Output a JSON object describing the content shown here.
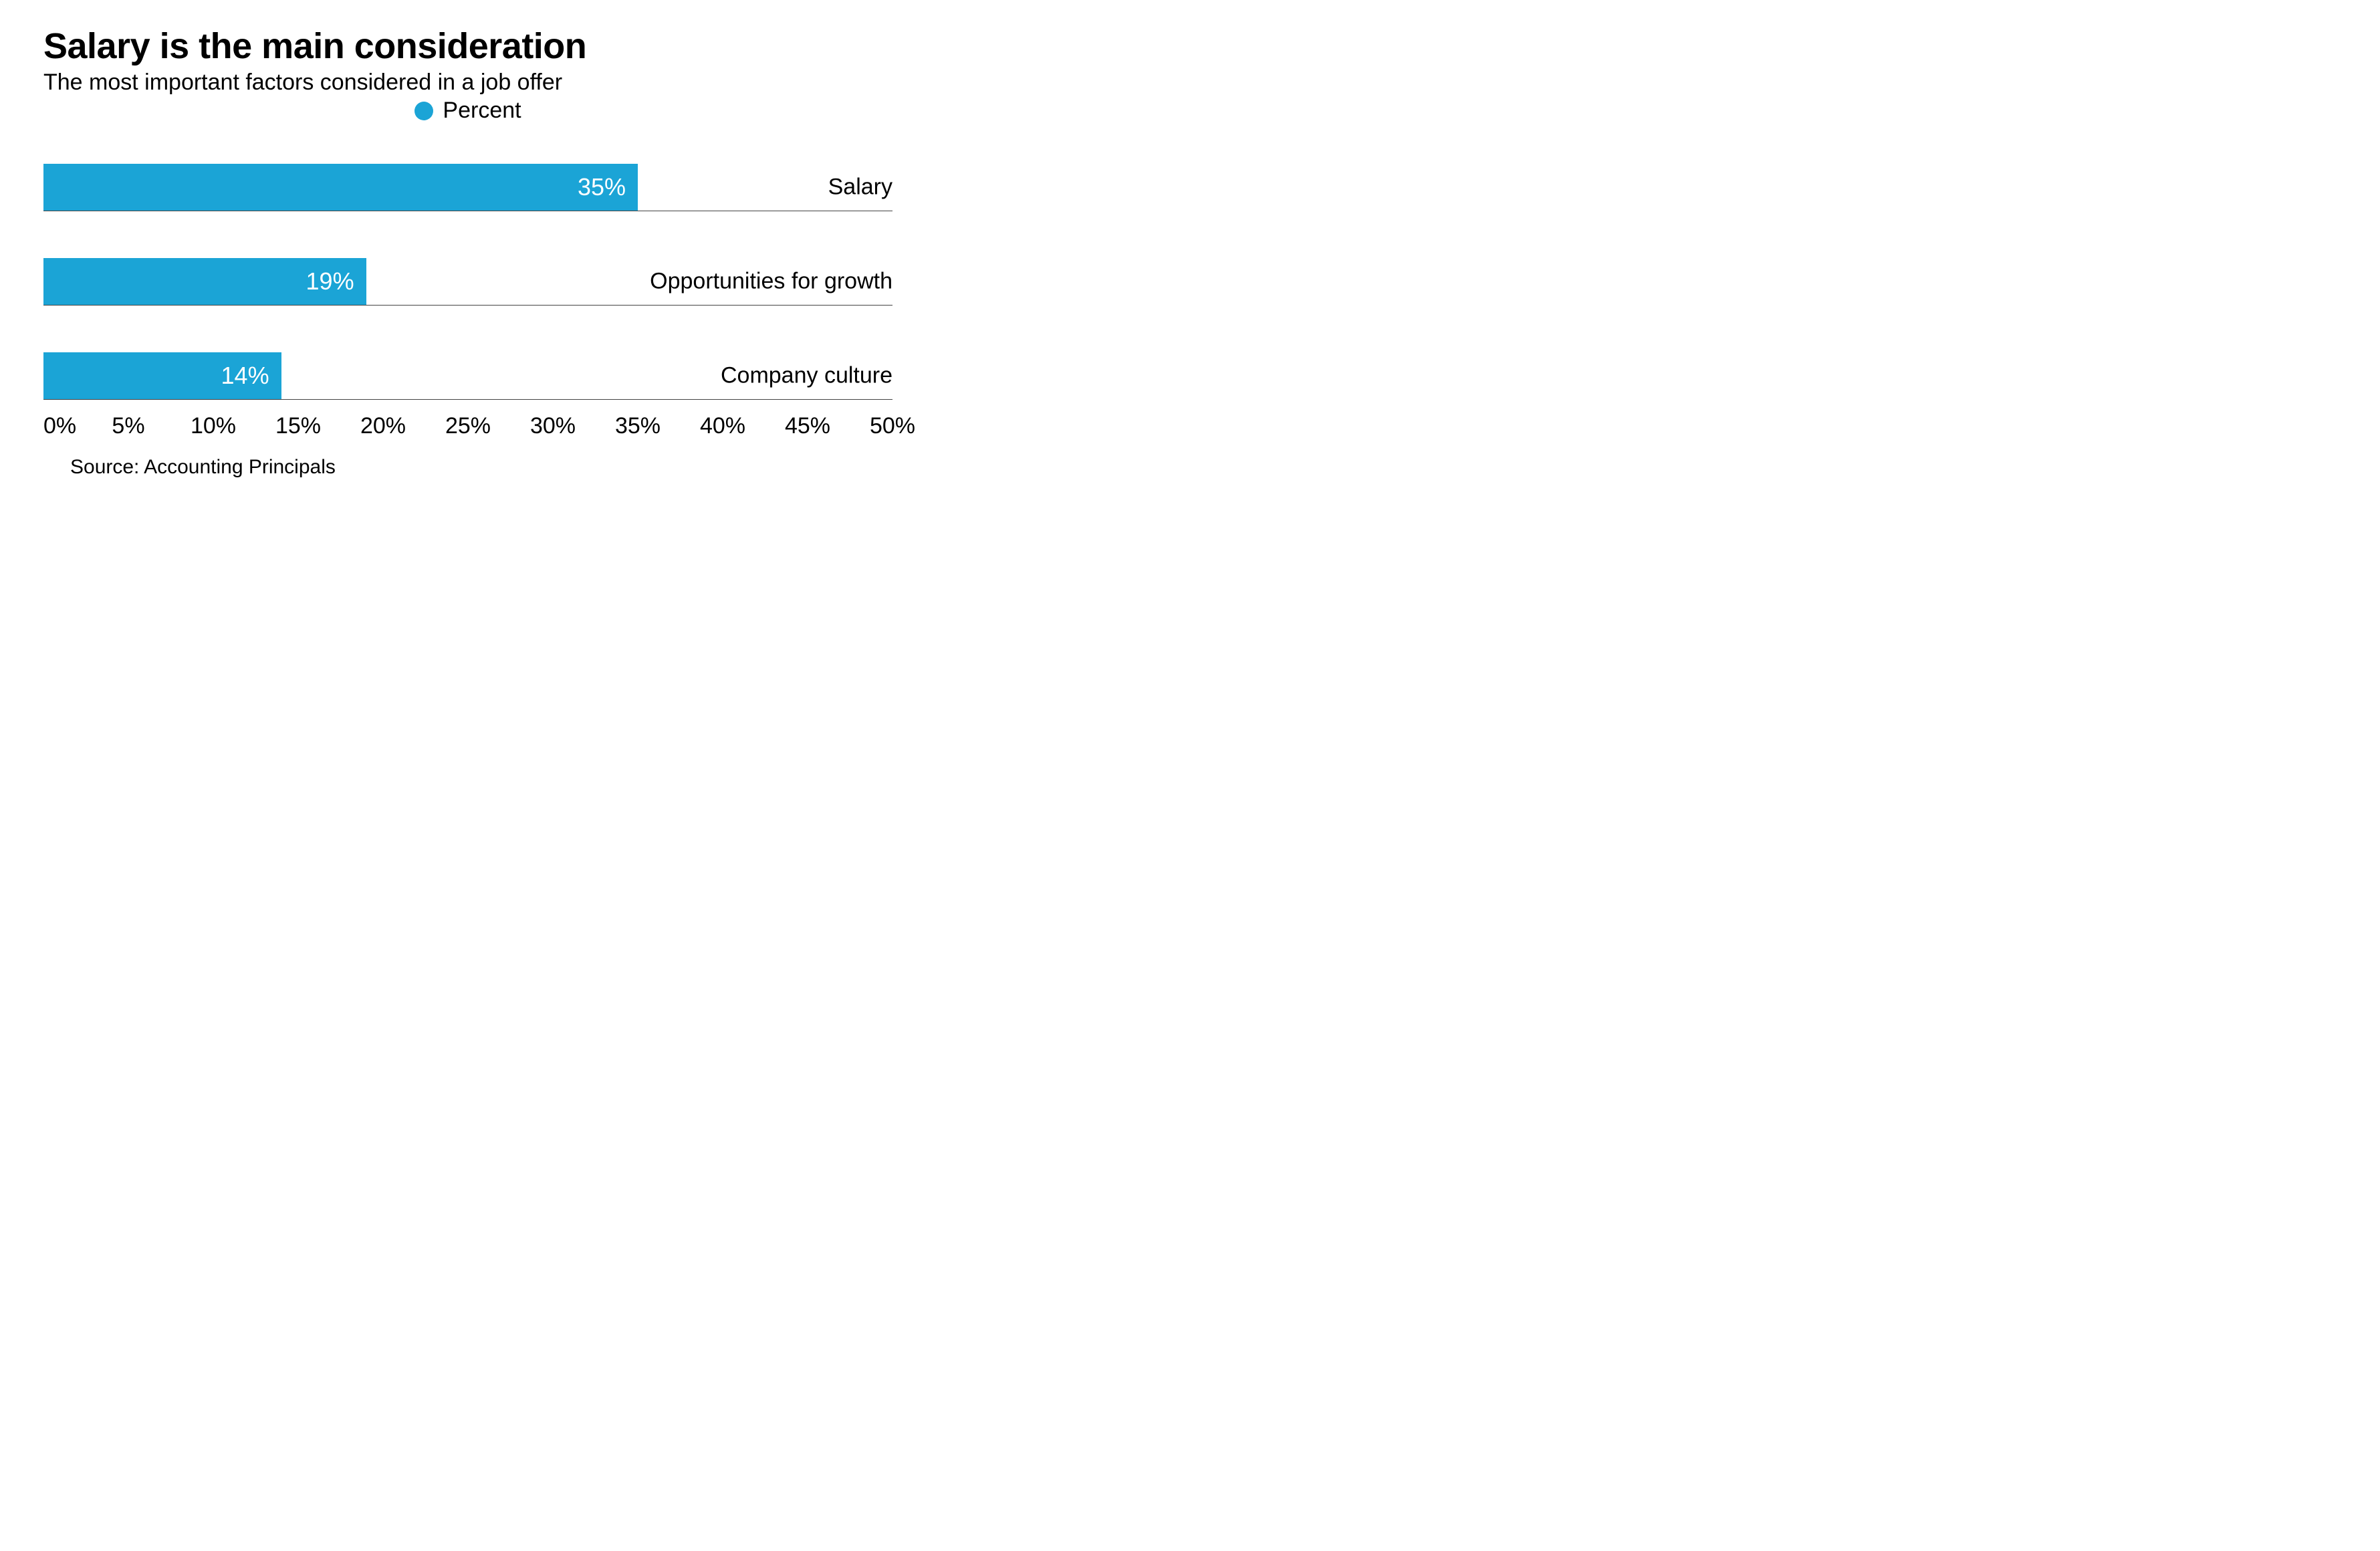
{
  "chart": {
    "type": "bar-horizontal",
    "title": "Salary is the main consideration",
    "subtitle": "The most important factors considered in a job offer",
    "legend": {
      "label": "Percent",
      "swatch_color": "#1ba4d6"
    },
    "bar_color": "#1ba4d6",
    "value_text_color": "#ffffff",
    "background_color": "#ffffff",
    "axis_line_color": "#444444",
    "text_color": "#000000",
    "title_fontsize": 54,
    "subtitle_fontsize": 34,
    "label_fontsize": 34,
    "value_fontsize": 36,
    "tick_fontsize": 34,
    "source_fontsize": 30,
    "x_axis": {
      "min": 0,
      "max": 50,
      "step": 5,
      "suffix": "%",
      "ticks": [
        {
          "value": 0,
          "label": "0%"
        },
        {
          "value": 5,
          "label": "5%"
        },
        {
          "value": 10,
          "label": "10%"
        },
        {
          "value": 15,
          "label": "15%"
        },
        {
          "value": 20,
          "label": "20%"
        },
        {
          "value": 25,
          "label": "25%"
        },
        {
          "value": 30,
          "label": "30%"
        },
        {
          "value": 35,
          "label": "35%"
        },
        {
          "value": 40,
          "label": "40%"
        },
        {
          "value": 45,
          "label": "45%"
        },
        {
          "value": 50,
          "label": "50%"
        }
      ]
    },
    "bars": [
      {
        "label": "Salary",
        "value": 35,
        "display": "35%"
      },
      {
        "label": "Opportunities for growth",
        "value": 19,
        "display": "19%"
      },
      {
        "label": "Company culture",
        "value": 14,
        "display": "14%"
      }
    ],
    "source": "Source: Accounting Principals"
  }
}
